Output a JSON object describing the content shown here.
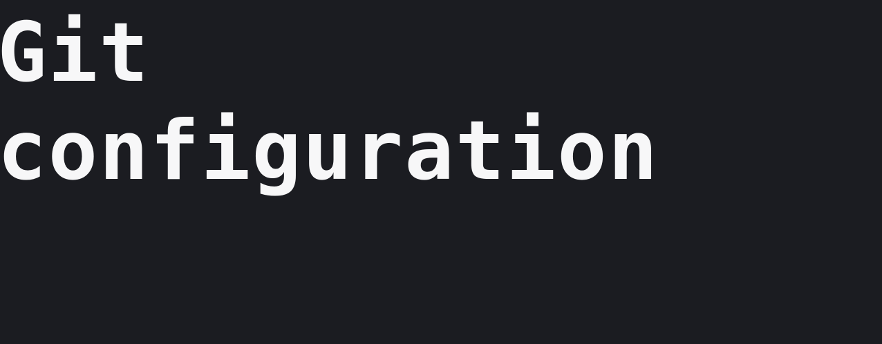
{
  "heading": {
    "line1": "Git",
    "line2": "configuration"
  },
  "colors": {
    "background": "#1b1c21",
    "text": "#f7f7f8"
  }
}
